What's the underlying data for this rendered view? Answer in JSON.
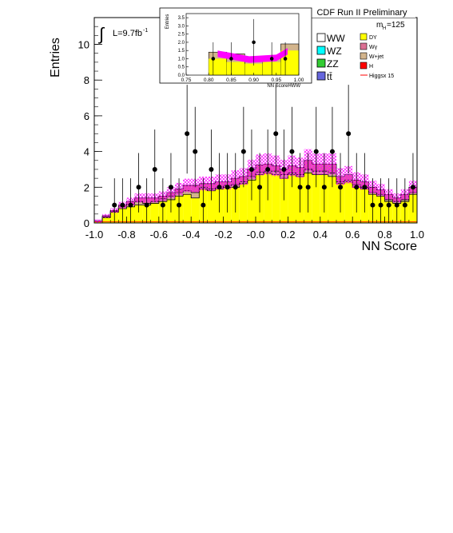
{
  "chart_data": {
    "type": "bar",
    "title": "CDF Run II Preliminary",
    "xlabel": "NN Score",
    "ylabel": "Entries",
    "xlim": [
      -1.0,
      1.0
    ],
    "ylim": [
      0,
      11.5
    ],
    "xticks": [
      "-1.0",
      "-0.8",
      "-0.6",
      "-0.4",
      "-0.2",
      "-0.0",
      "0.2",
      "0.4",
      "0.6",
      "0.8",
      "1.0"
    ],
    "yticks": [
      "0",
      "2",
      "4",
      "6",
      "8",
      "10"
    ],
    "luminosity": "L=9.7fb",
    "luminosity_sup": "-1",
    "mass_label": "m",
    "mass_sub": "H",
    "mass_value": "=125",
    "bin_edges_x": [
      -1.0,
      -0.95,
      -0.9,
      -0.85,
      -0.8,
      -0.75,
      -0.7,
      -0.65,
      -0.6,
      -0.55,
      -0.5,
      -0.45,
      -0.4,
      -0.35,
      -0.3,
      -0.25,
      -0.2,
      -0.15,
      -0.1,
      -0.05,
      0.0,
      0.05,
      0.1,
      0.15,
      0.2,
      0.25,
      0.3,
      0.35,
      0.4,
      0.45,
      0.5,
      0.55,
      0.6,
      0.65,
      0.7,
      0.75,
      0.8,
      0.85,
      0.9,
      0.95,
      1.0
    ],
    "series": [
      {
        "name": "DY",
        "color": "#ffff00",
        "values": [
          0.1,
          0.3,
          0.6,
          0.8,
          0.9,
          1.0,
          1.0,
          1.1,
          1.2,
          1.3,
          1.5,
          1.6,
          1.4,
          1.9,
          1.8,
          1.9,
          2.0,
          2.0,
          2.2,
          2.4,
          2.7,
          2.8,
          2.7,
          2.5,
          2.7,
          2.6,
          2.8,
          2.7,
          2.7,
          2.6,
          2.2,
          2.3,
          2.0,
          1.9,
          1.6,
          1.5,
          1.2,
          1.1,
          1.2,
          1.6
        ]
      },
      {
        "name": "W+jet",
        "color": "#d2b48c",
        "values": [
          0.0,
          0.05,
          0.05,
          0.1,
          0.15,
          0.2,
          0.1,
          0.1,
          0.15,
          0.2,
          0.2,
          0.2,
          0.3,
          0.1,
          0.1,
          0.1,
          0.1,
          0.15,
          0.1,
          0.2,
          0.15,
          0.1,
          0.2,
          0.2,
          0.1,
          0.1,
          0.2,
          0.2,
          0.2,
          0.2,
          0.1,
          0.1,
          0.15,
          0.1,
          0.1,
          0.1,
          0.1,
          0.1,
          0.1,
          0.1
        ]
      },
      {
        "name": "Wγ",
        "color": "#db7093",
        "values": [
          0.0,
          0.05,
          0.05,
          0.1,
          0.15,
          0.2,
          0.3,
          0.2,
          0.15,
          0.2,
          0.2,
          0.3,
          0.4,
          0.2,
          0.3,
          0.3,
          0.2,
          0.35,
          0.3,
          0.4,
          0.4,
          0.4,
          0.3,
          0.3,
          0.4,
          0.4,
          0.5,
          0.4,
          0.4,
          0.5,
          0.3,
          0.3,
          0.25,
          0.3,
          0.3,
          0.25,
          0.3,
          0.2,
          0.3,
          0.3
        ]
      }
    ],
    "systematic_band_color": "#ff00ff",
    "data_points": {
      "x": [
        -0.875,
        -0.825,
        -0.775,
        -0.725,
        -0.675,
        -0.625,
        -0.575,
        -0.525,
        -0.475,
        -0.425,
        -0.375,
        -0.325,
        -0.275,
        -0.225,
        -0.175,
        -0.125,
        -0.075,
        -0.025,
        0.025,
        0.075,
        0.125,
        0.175,
        0.225,
        0.275,
        0.325,
        0.375,
        0.425,
        0.475,
        0.525,
        0.575,
        0.625,
        0.675,
        0.725,
        0.775,
        0.825,
        0.875,
        0.925,
        0.975
      ],
      "y": [
        1,
        1,
        1,
        2,
        1,
        3,
        1,
        2,
        1,
        5,
        4,
        1,
        3,
        2,
        2,
        2,
        4,
        3,
        2,
        3,
        5,
        3,
        4,
        2,
        2,
        4,
        2,
        4,
        2,
        5,
        2,
        2,
        1,
        1,
        1,
        1,
        1,
        2
      ]
    },
    "legend": {
      "left_column": [
        {
          "name": "WW",
          "color": "#ffffff"
        },
        {
          "name": "WZ",
          "color": "#00ffff"
        },
        {
          "name": "ZZ",
          "color": "#33cc33"
        },
        {
          "name": "tt̄",
          "color": "#6666dd"
        }
      ],
      "right_column": [
        {
          "name": "DY",
          "color": "#ffff00",
          "kind": "box"
        },
        {
          "name": "Wγ",
          "color": "#db7093",
          "kind": "box"
        },
        {
          "name": "W+jet",
          "color": "#d2b48c",
          "kind": "box"
        },
        {
          "name": "H",
          "color": "#ff0000",
          "kind": "box"
        },
        {
          "name": "Higgsx 15",
          "color": "#ff0000",
          "kind": "line"
        }
      ]
    },
    "inset": {
      "xlabel": "NN ScoreHWW",
      "ylabel": "Entries",
      "xlim": [
        0.75,
        1.0
      ],
      "ylim": [
        0,
        3.75
      ],
      "xticks": [
        "0.75",
        "0.80",
        "0.85",
        "0.90",
        "0.95",
        "1.00"
      ],
      "yticks": [
        "0.0",
        "0.5",
        "1.0",
        "1.5",
        "2.0",
        "2.5",
        "3.0",
        "3.5"
      ],
      "bin_edges_x": [
        0.8,
        0.84,
        0.88,
        0.92,
        0.96,
        1.0
      ],
      "background_tan": [
        1.4,
        1.3,
        1.0,
        1.0,
        1.9
      ],
      "background_yellow": [
        1.0,
        0.8,
        0.7,
        0.8,
        1.5
      ],
      "band_x": [
        0.82,
        0.86,
        0.89,
        0.92,
        0.95,
        0.975
      ],
      "band_center": [
        1.3,
        1.1,
        0.95,
        1.0,
        1.05,
        1.45
      ],
      "data_x": [
        0.81,
        0.85,
        0.9,
        0.94,
        0.97
      ],
      "data_y": [
        1.0,
        1.0,
        2.0,
        1.0,
        1.0
      ]
    }
  }
}
